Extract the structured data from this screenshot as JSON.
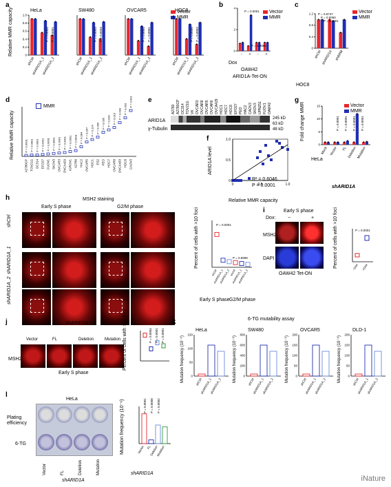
{
  "panel_a": {
    "label": "a",
    "ylabel": "Relative MMR capacity",
    "legend": [
      "Vector",
      "MMR"
    ],
    "colors": {
      "vector": "#e8262b",
      "mmr": "#1f2fb2"
    },
    "groups": [
      {
        "title": "HeLa",
        "pvals": [
          "P = 0.0004",
          "P = 0.0001"
        ]
      },
      {
        "title": "SW480",
        "pvals": [
          "P = 0.0003",
          "P = 0.0033"
        ]
      },
      {
        "title": "OVCAR5",
        "pvals": [
          "P = 0.0001",
          "P = 0.0001"
        ]
      },
      {
        "title": "HOC8",
        "pvals": [
          "P = 0.0005",
          "P = 0.0003"
        ]
      }
    ],
    "xticks": [
      "shCtrl",
      "shARID1A_1",
      "shARID1A_2"
    ],
    "yticks": [
      "0",
      "0.2",
      "0.4",
      "0.6",
      "0.8",
      "1.0"
    ]
  },
  "chart_data": [
    {
      "type": "bar",
      "title": "HeLa",
      "categories": [
        "shCtrl",
        "shARID1A_1",
        "shARID1A_2"
      ],
      "series": [
        {
          "name": "Vector",
          "values": [
            1.0,
            0.62,
            0.55
          ]
        },
        {
          "name": "MMR",
          "values": [
            1.0,
            0.95,
            0.92
          ]
        }
      ],
      "ylabel": "Relative MMR capacity",
      "ylim": [
        0,
        1.1
      ]
    },
    {
      "type": "bar",
      "title": "SW480",
      "categories": [
        "shCtrl",
        "shARID1A_1",
        "shARID1A_2"
      ],
      "series": [
        {
          "name": "Vector",
          "values": [
            1.0,
            0.5,
            0.45
          ]
        },
        {
          "name": "MMR",
          "values": [
            1.0,
            0.9,
            0.92
          ]
        }
      ],
      "ylabel": "Relative MMR capacity",
      "ylim": [
        0,
        1.1
      ]
    },
    {
      "type": "bar",
      "title": "OVCAR5",
      "categories": [
        "shCtrl",
        "shARID1A_1",
        "shARID1A_2"
      ],
      "series": [
        {
          "name": "Vector",
          "values": [
            1.0,
            0.4,
            0.25
          ]
        },
        {
          "name": "MMR",
          "values": [
            1.0,
            0.8,
            0.9
          ]
        }
      ],
      "ylabel": "Relative MMR capacity",
      "ylim": [
        0,
        1.1
      ]
    },
    {
      "type": "bar",
      "title": "HOC8",
      "categories": [
        "shCtrl",
        "shARID1A_1",
        "shARID1A_2"
      ],
      "series": [
        {
          "name": "Vector",
          "values": [
            1.0,
            0.45,
            0.3
          ]
        },
        {
          "name": "MMR",
          "values": [
            1.0,
            0.85,
            0.9
          ]
        }
      ],
      "ylabel": "Relative MMR capacity",
      "ylim": [
        0,
        1.1
      ]
    },
    {
      "type": "bar",
      "title": "",
      "categories": [
        "-",
        "+",
        "-",
        "+"
      ],
      "series": [
        {
          "name": "Vector",
          "values": [
            0.9,
            0.6,
            1.0,
            1.0
          ]
        },
        {
          "name": "MMR",
          "values": [
            1.0,
            4.2,
            1.0,
            1.0
          ]
        }
      ],
      "ylabel": "Relative MMR capacity",
      "ylim": [
        0,
        5
      ]
    },
    {
      "type": "bar",
      "title": "",
      "categories": [
        "shCtrl",
        "shARID1A",
        "shBRM"
      ],
      "series": [
        {
          "name": "Vector",
          "values": [
            1.0,
            1.0,
            0.55
          ]
        },
        {
          "name": "MMR",
          "values": [
            1.0,
            0.95,
            1.0
          ]
        }
      ],
      "ylabel": "Relative MMR capacity",
      "ylim": [
        0,
        1.2
      ]
    },
    {
      "type": "scatter",
      "title": "",
      "x": [
        0.0,
        0.05,
        0.1,
        0.15,
        0.3,
        0.45,
        0.5,
        0.55,
        0.6,
        0.65,
        0.7,
        0.8,
        0.85,
        0.9,
        1.0
      ],
      "y": [
        0.0,
        0.0,
        0.0,
        0.0,
        0.05,
        0.55,
        0.7,
        0.4,
        0.85,
        0.6,
        0.5,
        0.95,
        0.9,
        0.8,
        0.75
      ],
      "xlabel": "Relative MMR capacity",
      "ylabel": "ARID1A level",
      "xlim": [
        0,
        1.0
      ],
      "ylim": [
        0,
        1.0
      ]
    },
    {
      "type": "bar",
      "title": "",
      "categories": [
        "Mock",
        "Vector",
        "FL",
        "Deletion",
        "Mutation"
      ],
      "series": [
        {
          "name": "Vector",
          "values": [
            1,
            1,
            1,
            1,
            1
          ]
        },
        {
          "name": "MMR",
          "values": [
            1,
            1,
            1.5,
            12,
            1.2
          ]
        }
      ],
      "ylabel": "Fold change MMR",
      "ylim": [
        0,
        15
      ]
    }
  ],
  "panel_b": {
    "label": "b",
    "pvals": [
      "P = 0.0001",
      "P = 0.9999"
    ],
    "dox": "Dox",
    "signs": [
      "-",
      "+",
      "-",
      "+"
    ],
    "cell": "OAW42",
    "caption": "ARID1A-Tet-ON",
    "yticks": [
      "0",
      "2",
      "4"
    ]
  },
  "panel_c": {
    "label": "c",
    "pvals": [
      "P = 0.8747",
      "P = 0.0050",
      "P = 0.0001"
    ],
    "xticks": [
      "shCtrl",
      "shARID1A",
      "shBRM"
    ],
    "cell": "HOC8",
    "yticks": [
      "0",
      "0.4",
      "0.8",
      "1.2"
    ]
  },
  "panel_d": {
    "label": "d",
    "legend": "MMR",
    "ylabel": "Relative MMR capacity",
    "cells": [
      "A2780CP",
      "TOV21G",
      "OC314",
      "EFO27",
      "FUOV1",
      "SKOV3",
      "OVCAR3",
      "OVCA429",
      "IGROV1",
      "A2780",
      "HAC2",
      "OVCAR5",
      "HOC1",
      "ES2",
      "PEO",
      "HOC7",
      "OVCAR8",
      "OVCA433",
      "HOC8",
      "CAOV3"
    ],
    "pvals": [
      "P < 0.0001",
      "P < 0.0001",
      "P < 0.0001",
      "P < 0.0001",
      "P < 0.0001",
      "P < 0.0001",
      "P < 0.0001",
      "P < 0.0001",
      "P < 0.0001",
      "P < 0.0001",
      "P = 0.084",
      "P = 0.067",
      "P = 0.124",
      "P = 0.066",
      "P = 0.035",
      "P = 0.039",
      "P = 0.013",
      "P = 0.003",
      "P = 0.003",
      "P = 0.001"
    ]
  },
  "panel_e": {
    "label": "e",
    "rows": [
      "ARID1A",
      "γ-Tubulin"
    ],
    "sizes": [
      "245 kD",
      "63 kD",
      "48 kD"
    ],
    "cells": [
      "A2780",
      "A2780CP",
      "OC314",
      "TOV21G",
      "VK",
      "OVCAR3",
      "OVCAR8",
      "OVCAR5",
      "OVCAR6",
      "OVCA429",
      "HOC1",
      "HOC7",
      "HOC8",
      "EFO27",
      "PEO",
      "HAC2",
      "CAOV3",
      "SKOV3",
      "UPN251",
      "FUOV1",
      "OAW42"
    ]
  },
  "panel_f": {
    "label": "f",
    "r2": "R² = 0.6046",
    "p": "P = 0.0001",
    "xlabel": "Relative MMR capacity",
    "ylabel": "ARID1A level",
    "xticks": [
      "0",
      "0.5",
      "1.0"
    ],
    "yticks": [
      "0",
      "0.5",
      "1.0"
    ]
  },
  "panel_g": {
    "label": "g",
    "legend": [
      "Vector",
      "MMR"
    ],
    "ylabel": "Fold change MMR",
    "cell": "HeLa",
    "xticks": [
      "Mock",
      "Vector",
      "FL",
      "Deletion",
      "Mutation"
    ],
    "group": "shARID1A",
    "pvals": [
      "P = 0.0001",
      "P = 0.0001",
      "P = 0.0001",
      "P = 0.0001"
    ],
    "yticks": [
      "0",
      "5",
      "10",
      "15"
    ]
  },
  "panel_h": {
    "label": "h",
    "title": "MSH2 staining",
    "cols": [
      "Early S phase",
      "G2/M phase"
    ],
    "rows": [
      "shCtrl",
      "shARID1A_1",
      "shARID1A_2"
    ],
    "ylabel": "Percent of cells with >10 foci",
    "pvals": [
      "P = 0.0001",
      "P = 0.5999"
    ],
    "xticks": [
      "shCtrl",
      "shARID1A_1",
      "shARID1A_2",
      "shCtrl",
      "shARID1A_1",
      "shARID1A_2"
    ],
    "groups": [
      "Early S phase",
      "G2/M phase"
    ],
    "yticks": [
      "0",
      "20",
      "40",
      "60",
      "80"
    ]
  },
  "panel_i": {
    "label": "i",
    "title": "Early S phase",
    "dox": "Dox:",
    "signs": [
      "−",
      "+"
    ],
    "rows": [
      "MSH2",
      "DAPI"
    ],
    "cell": "OAW42 Tet-ON",
    "ylabel": "Percent of cells with >10 foci",
    "pval": "P = 0.0001",
    "xticks": [
      "−Dox",
      "+Dox"
    ],
    "yticks": [
      "0",
      "20",
      "40",
      "60"
    ]
  },
  "panel_j": {
    "label": "j",
    "group": "shARID1A",
    "cols": [
      "Vector",
      "FL",
      "Deletion",
      "Mutation"
    ],
    "row": "MSH2",
    "caption": "Early S phase",
    "ylabel": "Percent of cells with >10 foci",
    "pvals": [
      "P = 0.0004",
      "P = 0.0001",
      "P = 0.0001"
    ],
    "xticks": [
      "Vector",
      "FL",
      "Deletion",
      "Mutation"
    ],
    "yticks": [
      "0",
      "20",
      "40",
      "60"
    ]
  },
  "panel_k": {
    "label": "k",
    "title": "6-TG mutability assay",
    "cells": [
      "HeLa",
      "SW480",
      "OVCAR5",
      "DLD-1"
    ],
    "ylabel": "Mutation frequency (10⁻⁶)",
    "xticks": [
      "shCtrl",
      "shARID1A_1",
      "shARID1A_2"
    ],
    "yticks": [
      [
        "0",
        "50",
        "100",
        "150"
      ],
      [
        "0",
        "200",
        "400",
        "600",
        "800"
      ],
      [
        "0",
        "50",
        "100",
        "150",
        "200"
      ],
      [
        "0",
        "50",
        "100",
        "150",
        "200"
      ]
    ]
  },
  "panel_l": {
    "label": "l",
    "cell": "HeLa",
    "rows": [
      "Plating efficiency",
      "6-TG"
    ],
    "cols": [
      "Vector",
      "FL",
      "Deletion",
      "Mutation"
    ],
    "group": "shARID1A",
    "ylabel": "Mutation frequency (10⁻⁶)",
    "pvals": [
      "P = 0.0001",
      "P = 0.0008",
      "P = 0.0002"
    ],
    "xticks": [
      "Vector",
      "FL",
      "Deletion",
      "Mutation"
    ],
    "yticks": [
      "0",
      "50",
      "100",
      "150",
      "200"
    ]
  },
  "watermark": "iNature"
}
